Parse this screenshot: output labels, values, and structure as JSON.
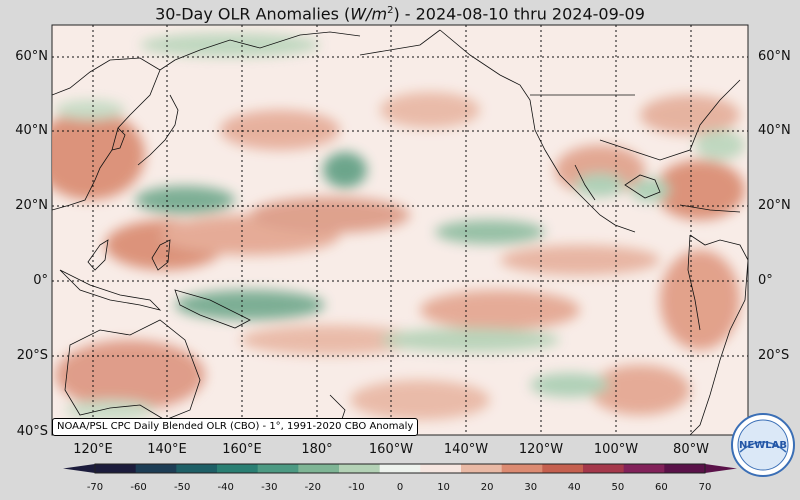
{
  "title": {
    "prefix": "30-Day OLR Anomalies (",
    "unit_base": "W/m",
    "unit_exp": "2",
    "suffix": ") - 2024-08-10 thru 2024-09-09"
  },
  "lat_labels": [
    "60°N",
    "40°N",
    "20°N",
    "0°",
    "20°S",
    "40°S"
  ],
  "lon_labels": [
    "120°E",
    "140°E",
    "160°E",
    "180°",
    "160°W",
    "140°W",
    "120°W",
    "100°W",
    "80°W"
  ],
  "source_note": "NOAA/PSL CPC Daily Blended OLR (CBO) - 1°, 1991-2020 CBO Anomaly",
  "colorbar": {
    "ticks": [
      "-70",
      "-60",
      "-50",
      "-40",
      "-30",
      "-20",
      "-10",
      "0",
      "10",
      "20",
      "30",
      "40",
      "50",
      "60",
      "70"
    ],
    "colors": [
      "#1c1c3c",
      "#1d3d55",
      "#1e5f66",
      "#2a7f73",
      "#4d9a83",
      "#7fb595",
      "#b4d2b6",
      "#eef3ee",
      "#f6e6e0",
      "#e9b9a5",
      "#dc8b72",
      "#c5604f",
      "#a5384b",
      "#82225a",
      "#5a1249"
    ]
  },
  "logo_text": "NEWLAB",
  "colors": {
    "background": "#d9d9d9",
    "ocean_base": "#f8ece7",
    "positive_anomaly": "#dc8b72",
    "negative_anomaly": "#4d9a83"
  }
}
